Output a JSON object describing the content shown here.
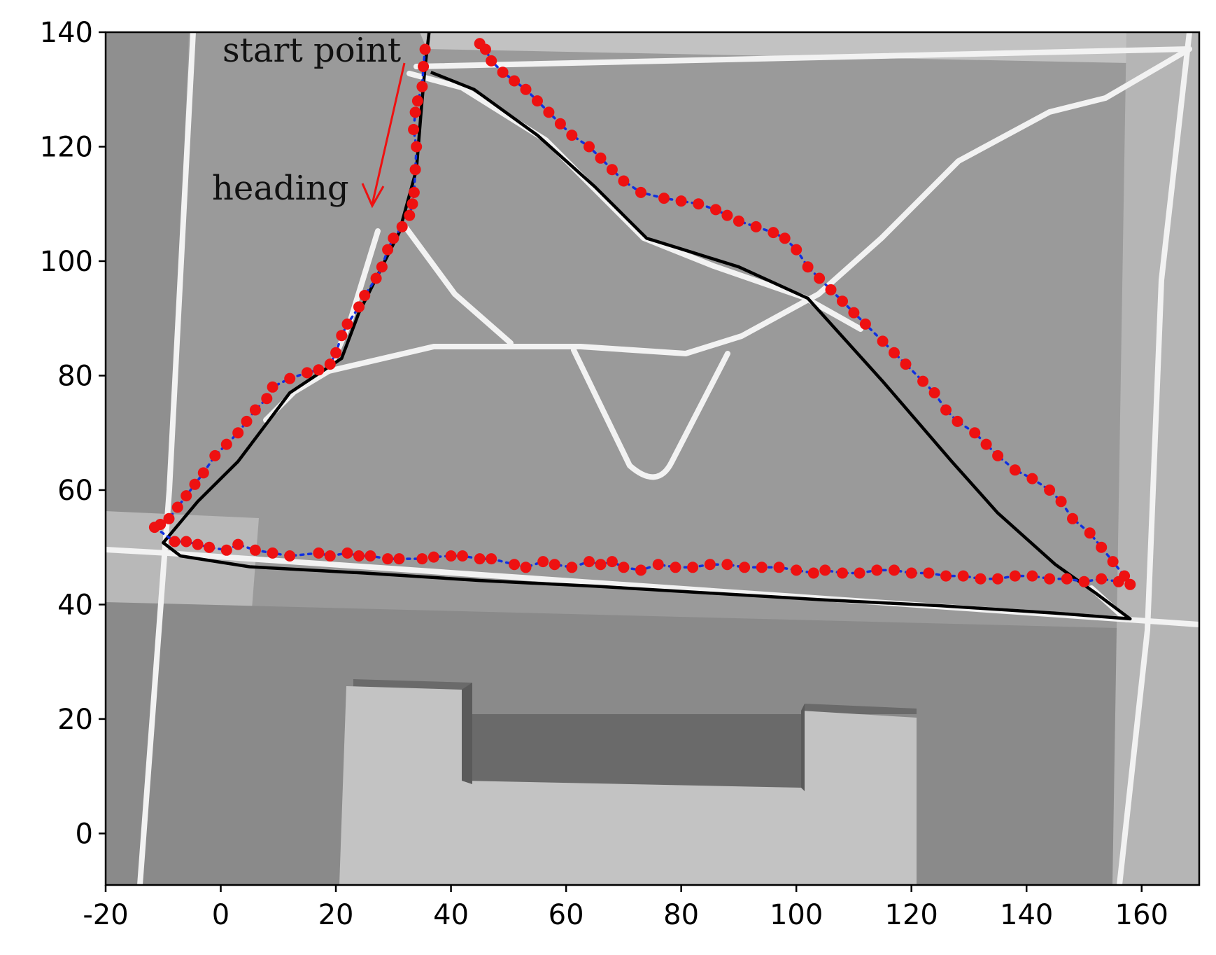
{
  "chart_data": {
    "type": "scatter",
    "xlim": [
      -20,
      170
    ],
    "ylim": [
      -9,
      140
    ],
    "xticks": [
      "-20",
      "0",
      "20",
      "40",
      "60",
      "80",
      "100",
      "120",
      "140",
      "160"
    ],
    "yticks": [
      "0",
      "20",
      "40",
      "60",
      "80",
      "100",
      "120",
      "140"
    ],
    "grid": false,
    "annotations": {
      "start_label": "start point",
      "heading_label": "heading",
      "color": "#ee1111"
    },
    "colors": {
      "map_base": "#9a9a9a",
      "map_light": "#c2c2c2",
      "road": "#f2f2f2",
      "reference_path": "#000000",
      "estimate_points": "#ee1111",
      "estimate_line": "#1030e0"
    },
    "series": [
      {
        "style": "black solid line",
        "points": [
          [
            36.5,
            133
          ],
          [
            44,
            130
          ],
          [
            55,
            122
          ],
          [
            65,
            113
          ],
          [
            74,
            104
          ],
          [
            82,
            101.5
          ],
          [
            90,
            99
          ],
          [
            102,
            93.5
          ],
          [
            115,
            79
          ],
          [
            127,
            65
          ],
          [
            135,
            56
          ],
          [
            145,
            47
          ],
          [
            152,
            42
          ],
          [
            158,
            37.5
          ],
          [
            145,
            38.5
          ],
          [
            125,
            39.8
          ],
          [
            105,
            40.8
          ],
          [
            85,
            42
          ],
          [
            65,
            43.2
          ],
          [
            45,
            44.2
          ],
          [
            25,
            45.5
          ],
          [
            5,
            46.6
          ],
          [
            -7,
            48.5
          ],
          [
            -10,
            50.8
          ],
          [
            -4,
            58
          ],
          [
            3,
            65
          ],
          [
            12,
            77
          ],
          [
            21,
            83
          ],
          [
            24,
            91
          ],
          [
            31,
            105
          ],
          [
            34,
            116
          ],
          [
            34.8,
            126
          ],
          [
            35.5,
            134
          ],
          [
            36.2,
            140
          ]
        ]
      },
      {
        "style": "red dots joined by blue dotted line",
        "points": [
          [
            35.5,
            137
          ],
          [
            35.2,
            134
          ],
          [
            35,
            130.5
          ],
          [
            34.2,
            128
          ],
          [
            33.8,
            126
          ],
          [
            33.5,
            123
          ],
          [
            34,
            120
          ],
          [
            33.8,
            116
          ],
          [
            33.6,
            112
          ],
          [
            33.3,
            110
          ],
          [
            32.8,
            108
          ],
          [
            31.5,
            106
          ],
          [
            30,
            104
          ],
          [
            29,
            102
          ],
          [
            28,
            99
          ],
          [
            27,
            97
          ],
          [
            25,
            94
          ],
          [
            24,
            92
          ],
          [
            22,
            89
          ],
          [
            21,
            87
          ],
          [
            20,
            84
          ],
          [
            19,
            82
          ],
          [
            17,
            81
          ],
          [
            15,
            80.5
          ],
          [
            12,
            79.5
          ],
          [
            9,
            78
          ],
          [
            8,
            76
          ],
          [
            6,
            74
          ],
          [
            4.5,
            72
          ],
          [
            3,
            70
          ],
          [
            1,
            68
          ],
          [
            -1,
            66
          ],
          [
            -3,
            63
          ],
          [
            -4.5,
            61
          ],
          [
            -6,
            59
          ],
          [
            -7.5,
            57
          ],
          [
            -9,
            55
          ],
          [
            -10.5,
            54
          ],
          [
            -11.5,
            53.5
          ],
          [
            -8,
            51
          ],
          [
            -6,
            51
          ],
          [
            -4,
            50.5
          ],
          [
            -2,
            50
          ],
          [
            1,
            49.5
          ],
          [
            3,
            50.5
          ],
          [
            6,
            49.5
          ],
          [
            9,
            49
          ],
          [
            12,
            48.5
          ],
          [
            17,
            49
          ],
          [
            19,
            48.5
          ],
          [
            22,
            49
          ],
          [
            24,
            48.5
          ],
          [
            26,
            48.5
          ],
          [
            29,
            48
          ],
          [
            31,
            48
          ],
          [
            35,
            48
          ],
          [
            37,
            48.3
          ],
          [
            40,
            48.5
          ],
          [
            42,
            48.5
          ],
          [
            45,
            48
          ],
          [
            47,
            48
          ],
          [
            51,
            47
          ],
          [
            53,
            46.5
          ],
          [
            56,
            47.5
          ],
          [
            58,
            47
          ],
          [
            61,
            46.5
          ],
          [
            64,
            47.5
          ],
          [
            66,
            47
          ],
          [
            68,
            47.5
          ],
          [
            70,
            46.5
          ],
          [
            73,
            46
          ],
          [
            76,
            47
          ],
          [
            79,
            46.5
          ],
          [
            82,
            46.5
          ],
          [
            85,
            47
          ],
          [
            88,
            47
          ],
          [
            91,
            46.5
          ],
          [
            94,
            46.5
          ],
          [
            97,
            46.5
          ],
          [
            100,
            46
          ],
          [
            103,
            45.5
          ],
          [
            105,
            46
          ],
          [
            108,
            45.5
          ],
          [
            111,
            45.5
          ],
          [
            114,
            46
          ],
          [
            117,
            46
          ],
          [
            120,
            45.5
          ],
          [
            123,
            45.5
          ],
          [
            126,
            45
          ],
          [
            129,
            45
          ],
          [
            132,
            44.5
          ],
          [
            135,
            44.5
          ],
          [
            138,
            45
          ],
          [
            141,
            45
          ],
          [
            144,
            44.5
          ],
          [
            147,
            44.5
          ],
          [
            150,
            44
          ],
          [
            153,
            44.5
          ],
          [
            156,
            44
          ],
          [
            158,
            43.5
          ],
          [
            157,
            45
          ],
          [
            155,
            47.5
          ],
          [
            153,
            50
          ],
          [
            151,
            52.5
          ],
          [
            148,
            55
          ],
          [
            146,
            58
          ],
          [
            144,
            60
          ],
          [
            141,
            62
          ],
          [
            138,
            63.5
          ],
          [
            135,
            66
          ],
          [
            133,
            68
          ],
          [
            131,
            70
          ],
          [
            128,
            72
          ],
          [
            126,
            74
          ],
          [
            124,
            77
          ],
          [
            122,
            79
          ],
          [
            119,
            82
          ],
          [
            117,
            84
          ],
          [
            115,
            86
          ],
          [
            112,
            89
          ],
          [
            110,
            91
          ],
          [
            108,
            93
          ],
          [
            106,
            95
          ],
          [
            104,
            97
          ],
          [
            102,
            99
          ],
          [
            100,
            102
          ],
          [
            98,
            104
          ],
          [
            96,
            105
          ],
          [
            93,
            106
          ],
          [
            90,
            107
          ],
          [
            88,
            108
          ],
          [
            86,
            109
          ],
          [
            83,
            110
          ],
          [
            80,
            110.5
          ],
          [
            77,
            111
          ],
          [
            73,
            112
          ],
          [
            70,
            114
          ],
          [
            68,
            116
          ],
          [
            66,
            118
          ],
          [
            64,
            120
          ],
          [
            61,
            122
          ],
          [
            59,
            124
          ],
          [
            57,
            126
          ],
          [
            55,
            128
          ],
          [
            53,
            130
          ],
          [
            51,
            131.5
          ],
          [
            49,
            133
          ],
          [
            47,
            135
          ],
          [
            46,
            137
          ],
          [
            45,
            138
          ]
        ]
      }
    ]
  }
}
